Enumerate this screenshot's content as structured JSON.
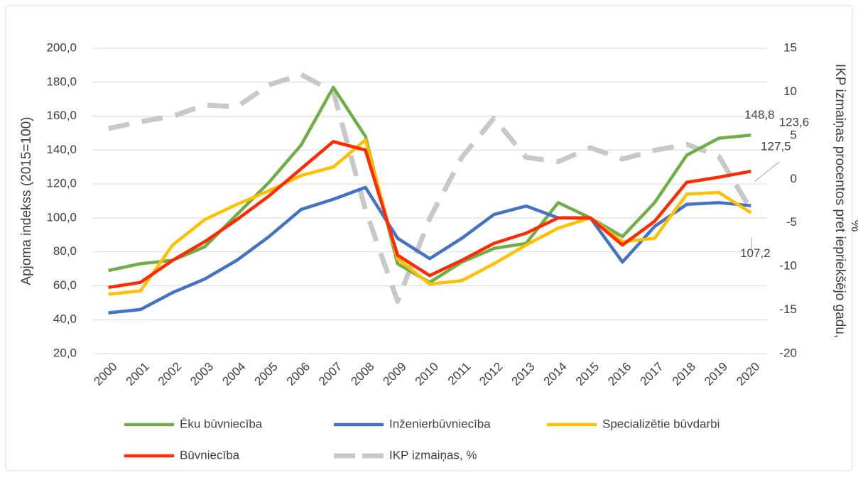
{
  "chart_data": {
    "type": "line",
    "ylabel": "Apjoma indekss (2015=100)",
    "y2label": [
      "IKP izmaiņas procentos pret iepriekšējo gadu,",
      "%"
    ],
    "categories": [
      "2000",
      "2001",
      "2002",
      "2003",
      "2004",
      "2005",
      "2006",
      "2007",
      "2008",
      "2009",
      "2010",
      "2011",
      "2012",
      "2013",
      "2014",
      "2015",
      "2016",
      "2017",
      "2018",
      "2019",
      "2020"
    ],
    "ylim": [
      20,
      200
    ],
    "yticks": [
      {
        "value": 20,
        "label": "20,0"
      },
      {
        "value": 40,
        "label": "40,0"
      },
      {
        "value": 60,
        "label": "60,0"
      },
      {
        "value": 80,
        "label": "80,0"
      },
      {
        "value": 100,
        "label": "100,0"
      },
      {
        "value": 120,
        "label": "120,0"
      },
      {
        "value": 140,
        "label": "140,0"
      },
      {
        "value": 160,
        "label": "160,0"
      },
      {
        "value": 180,
        "label": "180,0"
      },
      {
        "value": 200,
        "label": "200,0"
      }
    ],
    "y2lim": [
      -20,
      15
    ],
    "y2ticks": [
      -20,
      -15,
      -10,
      -5,
      0,
      5,
      10,
      15
    ],
    "grid": true,
    "legend": "bottom",
    "series": [
      {
        "name": "Ēku būvniecība",
        "color": "#70ad47",
        "values": [
          69,
          73,
          75,
          83,
          102,
          121,
          143,
          177,
          148,
          73,
          62,
          74,
          82,
          85,
          109,
          100,
          89,
          109,
          137,
          147,
          148.8
        ],
        "value_labels": [
          null,
          null,
          null,
          null,
          null,
          null,
          null,
          null,
          null,
          null,
          null,
          null,
          null,
          null,
          null,
          null,
          null,
          null,
          null,
          null,
          "148,8"
        ]
      },
      {
        "name": "Inženierbūvniecība",
        "color": "#4472c4",
        "values": [
          44,
          46,
          56,
          64,
          75,
          89,
          105,
          111,
          118,
          88,
          76,
          88,
          102,
          107,
          100,
          100,
          74,
          95,
          108,
          109,
          107.2
        ],
        "value_labels": [
          null,
          null,
          null,
          null,
          null,
          null,
          null,
          null,
          null,
          null,
          null,
          null,
          null,
          null,
          null,
          null,
          null,
          null,
          null,
          null,
          "107,2"
        ]
      },
      {
        "name": "Specializētie būvdarbi",
        "color": "#ffc000",
        "values": [
          55,
          57,
          84,
          99,
          108,
          116,
          125,
          130,
          146,
          76,
          61,
          63,
          73,
          84,
          94,
          100,
          86,
          88,
          114,
          115,
          103
        ]
      },
      {
        "name": "Būvniecība",
        "color": "#ff2a00",
        "values": [
          59,
          62,
          75,
          86,
          99,
          113,
          129,
          145,
          140,
          78,
          66,
          75,
          85,
          91,
          100,
          100,
          84,
          98,
          121,
          124,
          127.5
        ],
        "value_labels": [
          null,
          null,
          null,
          null,
          null,
          null,
          null,
          null,
          null,
          null,
          null,
          null,
          null,
          null,
          null,
          null,
          null,
          null,
          null,
          null,
          "127,5"
        ]
      },
      {
        "name": "IKP izmaiņas, %",
        "color": "#c8c8c8",
        "axis": "y2",
        "dashed": true,
        "values": [
          5.8,
          6.6,
          7.2,
          8.5,
          8.3,
          10.8,
          12,
          10,
          -3.5,
          -14,
          -4.5,
          2.5,
          7,
          2.5,
          2,
          3.6,
          2.3,
          3.3,
          4,
          2.6,
          -3.5
        ]
      }
    ],
    "annotations": [
      "123,6"
    ]
  }
}
